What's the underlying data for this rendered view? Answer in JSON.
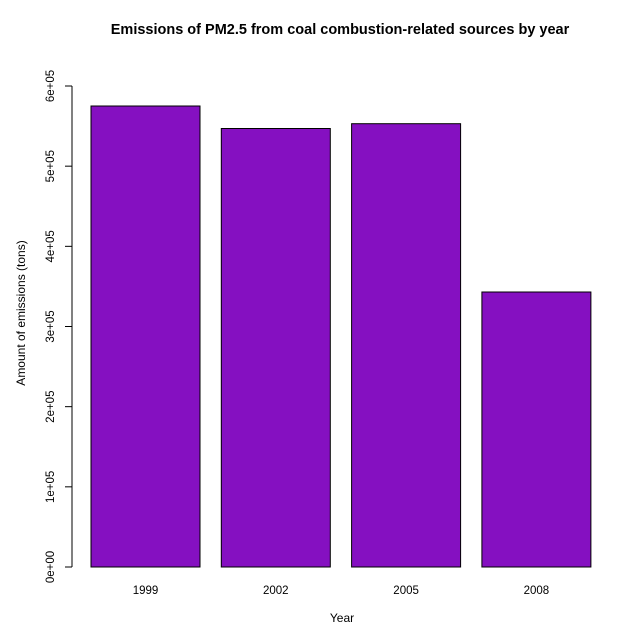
{
  "chart_data": {
    "type": "bar",
    "title": "Emissions of PM2.5 from coal combustion-related sources by year",
    "xlabel": "Year",
    "ylabel": "Amount of emissions (tons)",
    "categories": [
      "1999",
      "2002",
      "2005",
      "2008"
    ],
    "values": [
      575000,
      547000,
      553000,
      343000
    ],
    "ylim": [
      0,
      600000
    ],
    "yticks": [
      0,
      100000,
      200000,
      300000,
      400000,
      500000,
      600000
    ],
    "ytick_labels": [
      "0e+00",
      "1e+05",
      "2e+05",
      "3e+05",
      "4e+05",
      "5e+05",
      "6e+05"
    ],
    "bar_color": "#8510C1",
    "grid": false,
    "legend": "none"
  }
}
